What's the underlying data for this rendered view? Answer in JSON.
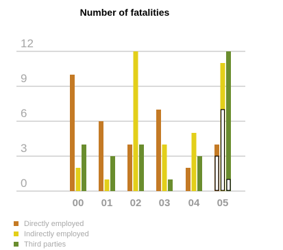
{
  "chart_data": {
    "type": "bar",
    "title": "Number of fatalities",
    "categories": [
      "00",
      "01",
      "02",
      "03",
      "04",
      "05"
    ],
    "y_ticks": [
      "0",
      "3",
      "6",
      "9",
      "12"
    ],
    "ylim": [
      0,
      12
    ],
    "grid": true,
    "legend_position": "bottom-left",
    "series": [
      {
        "name": "Directly employed",
        "color": "#c47a25",
        "values": [
          10,
          6,
          4,
          7,
          2,
          4
        ],
        "outlined_portion": [
          0,
          0,
          0,
          0,
          0,
          3
        ]
      },
      {
        "name": "Indirectly employed",
        "color": "#e3cf1a",
        "values": [
          2,
          1,
          12,
          4,
          5,
          11
        ],
        "outlined_portion": [
          0,
          0,
          0,
          0,
          0,
          7
        ]
      },
      {
        "name": "Third parties",
        "color": "#6a8d2e",
        "values": [
          4,
          3,
          4,
          1,
          3,
          12
        ],
        "outlined_portion": [
          0,
          0,
          0,
          0,
          0,
          1
        ]
      }
    ]
  }
}
